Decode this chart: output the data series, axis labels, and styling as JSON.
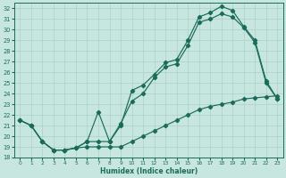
{
  "xlabel": "Humidex (Indice chaleur)",
  "bg_color": "#c8e6e0",
  "grid_color": "#b0d4cc",
  "line_color": "#1a6b5a",
  "xlim": [
    -0.5,
    23.5
  ],
  "ylim": [
    18,
    32.5
  ],
  "xticks": [
    0,
    1,
    2,
    3,
    4,
    5,
    6,
    7,
    8,
    9,
    10,
    11,
    12,
    13,
    14,
    15,
    16,
    17,
    18,
    19,
    20,
    21,
    22,
    23
  ],
  "yticks": [
    18,
    19,
    20,
    21,
    22,
    23,
    24,
    25,
    26,
    27,
    28,
    29,
    30,
    31,
    32
  ],
  "line1_x": [
    0,
    1,
    2,
    3,
    4,
    5,
    6,
    7,
    8,
    9,
    10,
    11,
    12,
    13,
    14,
    15,
    16,
    17,
    18,
    19,
    20,
    21,
    22,
    23
  ],
  "line1_y": [
    21.5,
    21.0,
    19.5,
    18.7,
    18.7,
    18.9,
    19.5,
    22.3,
    19.5,
    21.0,
    24.3,
    24.8,
    25.8,
    26.9,
    27.2,
    29.0,
    31.2,
    31.6,
    32.2,
    31.8,
    30.3,
    29.0,
    25.2,
    23.5
  ],
  "line2_x": [
    0,
    1,
    2,
    3,
    4,
    5,
    6,
    7,
    8,
    9,
    10,
    11,
    12,
    13,
    14,
    15,
    16,
    17,
    18,
    19,
    20,
    21,
    22,
    23
  ],
  "line2_y": [
    21.5,
    21.0,
    19.5,
    18.7,
    18.7,
    18.9,
    19.5,
    19.5,
    19.5,
    21.2,
    23.3,
    24.0,
    25.5,
    26.5,
    26.8,
    28.5,
    30.7,
    31.0,
    31.5,
    31.2,
    30.2,
    28.8,
    25.0,
    23.5
  ],
  "line3_x": [
    0,
    1,
    2,
    3,
    4,
    5,
    6,
    7,
    8,
    9,
    10,
    11,
    12,
    13,
    14,
    15,
    16,
    17,
    18,
    19,
    20,
    21,
    22,
    23
  ],
  "line3_y": [
    21.5,
    21.0,
    19.5,
    18.7,
    18.7,
    18.9,
    19.0,
    19.0,
    19.0,
    19.0,
    19.5,
    20.0,
    20.5,
    21.0,
    21.5,
    22.0,
    22.5,
    22.8,
    23.0,
    23.2,
    23.5,
    23.6,
    23.7,
    23.8
  ]
}
